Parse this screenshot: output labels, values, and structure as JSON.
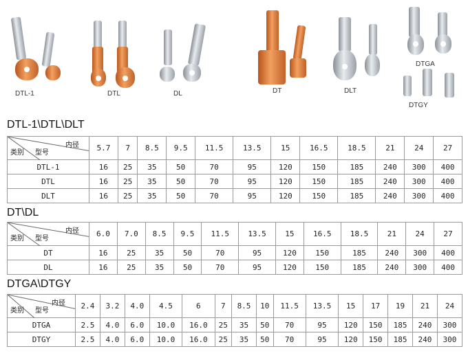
{
  "products": [
    {
      "label": "DTL-1",
      "type": "bimetal"
    },
    {
      "label": "DTL",
      "type": "copper"
    },
    {
      "label": "DL",
      "type": "aluminium"
    },
    {
      "label": "DT",
      "type": "copper"
    },
    {
      "label": "DLT",
      "type": "aluminium"
    },
    {
      "label": "DTGA",
      "type": "tinned"
    },
    {
      "label": "DTGY",
      "type": "tinned"
    }
  ],
  "corner": {
    "top": "内径",
    "left": "类别",
    "mid": "型号"
  },
  "tables": [
    {
      "title": "DTL-1\\DTL\\DLT",
      "headers": [
        "5.7",
        "7",
        "8.5",
        "9.5",
        "11.5",
        "13.5",
        "15",
        "16.5",
        "18.5",
        "21",
        "24",
        "27"
      ],
      "rows": [
        {
          "name": "DTL-1",
          "values": [
            "16",
            "25",
            "35",
            "50",
            "70",
            "95",
            "120",
            "150",
            "185",
            "240",
            "300",
            "400"
          ]
        },
        {
          "name": "DTL",
          "values": [
            "16",
            "25",
            "35",
            "50",
            "70",
            "95",
            "120",
            "150",
            "185",
            "240",
            "300",
            "400"
          ]
        },
        {
          "name": "DLT",
          "values": [
            "16",
            "25",
            "35",
            "50",
            "70",
            "95",
            "120",
            "150",
            "185",
            "240",
            "300",
            "400"
          ]
        }
      ]
    },
    {
      "title": "DT\\DL",
      "headers": [
        "6.0",
        "7.0",
        "8.5",
        "9.5",
        "11.5",
        "13.5",
        "15",
        "16.5",
        "18.5",
        "21",
        "24",
        "27"
      ],
      "rows": [
        {
          "name": "DT",
          "values": [
            "16",
            "25",
            "35",
            "50",
            "70",
            "95",
            "120",
            "150",
            "185",
            "240",
            "300",
            "400"
          ]
        },
        {
          "name": "DL",
          "values": [
            "16",
            "25",
            "35",
            "50",
            "70",
            "95",
            "120",
            "150",
            "185",
            "240",
            "300",
            "400"
          ]
        }
      ]
    },
    {
      "title": "DTGA\\DTGY",
      "headers": [
        "2.4",
        "3.2",
        "4.0",
        "4.5",
        "6",
        "7",
        "8.5",
        "10",
        "11.5",
        "13.5",
        "15",
        "17",
        "19",
        "21",
        "24"
      ],
      "rows": [
        {
          "name": "DTGA",
          "values": [
            "2.5",
            "4.0",
            "6.0",
            "10.0",
            "16.0",
            "25",
            "35",
            "50",
            "70",
            "95",
            "120",
            "150",
            "185",
            "240",
            "300"
          ]
        },
        {
          "name": "DTGY",
          "values": [
            "2.5",
            "4.0",
            "6.0",
            "10.0",
            "16.0",
            "25",
            "35",
            "50",
            "70",
            "95",
            "120",
            "150",
            "185",
            "240",
            "300"
          ]
        }
      ]
    }
  ]
}
